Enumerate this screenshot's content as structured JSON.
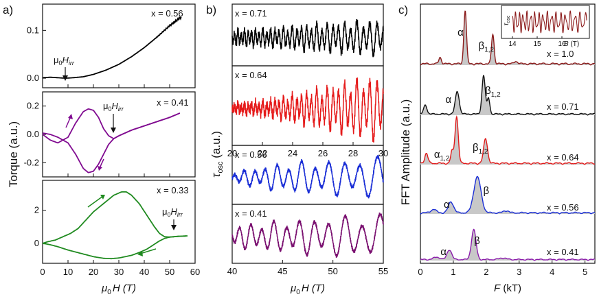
{
  "chart_data": [
    {
      "panel": "a",
      "type": "line",
      "panel_label": "a)",
      "xlabel_mu": "μ",
      "xlabel_sub": "0",
      "xlabel_rest": "H (T)",
      "ylabel": "Torque (a.u.)",
      "xlim": [
        0,
        60
      ],
      "xticks": [
        "0",
        "10",
        "20",
        "30",
        "40",
        "50",
        "60"
      ],
      "subplots": [
        {
          "composition": "x = 0.56",
          "ylim": [
            -0.02,
            0.155
          ],
          "yticks": [
            "0.0",
            "0.1"
          ],
          "ytick_values": [
            0.0,
            0.1
          ],
          "color": "#000000",
          "annotation": "μ0Hirr",
          "annotation_parts": {
            "mu": "μ",
            "sub": "0",
            "H": "H",
            "irr": "irr"
          },
          "annotation_field": 9,
          "series": [
            {
              "name": "torque",
              "x": [
                0,
                3,
                6,
                9,
                12,
                16,
                20,
                25,
                30,
                35,
                40,
                45,
                50,
                54.5
              ],
              "y": [
                0.001,
                0.002,
                0.001,
                0.0,
                0.001,
                0.003,
                0.008,
                0.017,
                0.029,
                0.045,
                0.064,
                0.086,
                0.11,
                0.128
              ]
            }
          ]
        },
        {
          "composition": "x = 0.41",
          "ylim": [
            -0.3,
            0.3
          ],
          "yticks": [
            "-0.2",
            "0.0",
            "0.2"
          ],
          "ytick_values": [
            -0.2,
            0.0,
            0.2
          ],
          "color": "#800a90",
          "annotation": "μ0Hirr",
          "annotation_parts": {
            "mu": "μ",
            "sub": "0",
            "H": "H",
            "irr": "irr"
          },
          "annotation_field": 27,
          "series": [
            {
              "name": "up sweep",
              "x": [
                0,
                3,
                6,
                10,
                13,
                16,
                18,
                20,
                22,
                24,
                26,
                28,
                30,
                35,
                40,
                45,
                50,
                54
              ],
              "y": [
                0.0,
                -0.04,
                -0.06,
                -0.02,
                0.08,
                0.16,
                0.18,
                0.17,
                0.12,
                0.04,
                -0.01,
                -0.03,
                -0.01,
                0.03,
                0.06,
                0.09,
                0.12,
                0.15
              ]
            },
            {
              "name": "down sweep",
              "x": [
                54,
                50,
                45,
                40,
                35,
                30,
                28,
                26,
                24,
                22,
                20,
                18,
                16,
                13,
                10,
                6,
                3,
                0
              ],
              "y": [
                0.15,
                0.12,
                0.09,
                0.06,
                0.03,
                -0.01,
                -0.03,
                -0.07,
                -0.14,
                -0.21,
                -0.26,
                -0.27,
                -0.24,
                -0.14,
                -0.06,
                -0.02,
                0.0,
                0.01
              ]
            }
          ]
        },
        {
          "composition": "x = 0.33",
          "ylim": [
            -1.2,
            3.8
          ],
          "yticks": [
            "0",
            "2"
          ],
          "ytick_values": [
            0,
            2
          ],
          "color": "#1f8a1f",
          "annotation": "μ0Hirr",
          "annotation_parts": {
            "mu": "μ",
            "sub": "0",
            "H": "H",
            "irr": "irr"
          },
          "annotation_field": 51,
          "series": [
            {
              "name": "up sweep",
              "x": [
                0,
                2,
                5,
                8,
                11,
                14,
                17,
                20,
                24,
                28,
                31,
                33,
                35,
                38,
                41,
                44,
                46,
                48,
                50,
                53,
                57
              ],
              "y": [
                0.0,
                0.1,
                0.2,
                0.4,
                0.6,
                0.9,
                1.4,
                1.9,
                2.4,
                2.9,
                3.1,
                3.1,
                2.9,
                2.4,
                1.7,
                1.0,
                0.6,
                0.4,
                0.38,
                0.42,
                0.45
              ]
            },
            {
              "name": "down sweep",
              "x": [
                57,
                53,
                50,
                48,
                46,
                44,
                41,
                38,
                35,
                30,
                27,
                24,
                20,
                15,
                10,
                6,
                3,
                1,
                0
              ],
              "y": [
                0.45,
                0.42,
                0.38,
                0.3,
                0.15,
                -0.05,
                -0.35,
                -0.55,
                -0.72,
                -0.88,
                -0.92,
                -0.9,
                -0.8,
                -0.6,
                -0.4,
                -0.2,
                -0.08,
                -0.02,
                0.0
              ]
            }
          ]
        }
      ]
    },
    {
      "panel": "b",
      "type": "line",
      "panel_label": "b)",
      "xlabel_mu": "μ",
      "xlabel_sub": "0",
      "xlabel_rest": "H (T)",
      "ylabel_tau": "τ",
      "ylabel_sub": "osc",
      "ylabel_rest": " (a.u.)",
      "top_group": {
        "xlim": [
          20,
          30
        ],
        "xticks": [
          "20",
          "22",
          "24",
          "26",
          "28",
          "30"
        ],
        "subplots": [
          {
            "composition": "x = 0.71",
            "color": "#000000",
            "ylim": [
              -1,
              1
            ],
            "x": [
              20,
              21,
              22,
              23,
              24,
              25,
              26,
              27,
              28,
              29,
              30
            ],
            "envelope": [
              0.28,
              0.3,
              0.32,
              0.36,
              0.42,
              0.48,
              0.52,
              0.56,
              0.6,
              0.62,
              0.66
            ],
            "frequency_kT": 1.9
          },
          {
            "composition": "x = 0.64",
            "color": "#e51a1a",
            "ylim": [
              -1,
              1
            ],
            "x": [
              20,
              21,
              22,
              23,
              24,
              25,
              26,
              27,
              28,
              29,
              30
            ],
            "envelope": [
              0.1,
              0.15,
              0.2,
              0.28,
              0.38,
              0.48,
              0.58,
              0.7,
              0.8,
              0.88,
              0.95
            ],
            "frequency_kT": 1.9
          }
        ]
      },
      "bottom_group": {
        "xlim": [
          40,
          55
        ],
        "xticks": [
          "40",
          "45",
          "50",
          "55"
        ],
        "subplots": [
          {
            "composition": "x = 0.56",
            "color": "#1a2ed6",
            "ylim": [
              -1,
              1
            ],
            "x": [
              40,
              42,
              44,
              46,
              48,
              50,
              52,
              54,
              55
            ],
            "envelope": [
              0.2,
              0.35,
              0.5,
              0.6,
              0.65,
              0.68,
              0.72,
              0.8,
              0.85
            ],
            "frequency_kT": 1.7
          },
          {
            "composition": "x = 0.41",
            "color": "#7a1070",
            "ylim": [
              -1,
              1
            ],
            "x": [
              40,
              42,
              44,
              46,
              48,
              50,
              52,
              54,
              55
            ],
            "envelope": [
              0.45,
              0.5,
              0.58,
              0.65,
              0.72,
              0.78,
              0.82,
              0.85,
              0.88
            ],
            "frequency_kT": 1.6
          }
        ]
      }
    },
    {
      "panel": "c",
      "type": "area",
      "panel_label": "c)",
      "xlabel_F": "F",
      "xlabel_rest": " (kT)",
      "ylabel": "FFT Amplitude (a.u.)",
      "xlim": [
        0,
        5.3
      ],
      "xticks": [
        "0",
        "1",
        "2",
        "3",
        "4",
        "5"
      ],
      "xtick_values": [
        0,
        1,
        2,
        3,
        4,
        5
      ],
      "spectra": [
        {
          "composition": "x = 1.0",
          "color": "#8b1a1a",
          "fill": "#c8c8c8",
          "peaks": [
            {
              "F": 0.6,
              "A": 0.12,
              "w": 0.04
            },
            {
              "F": 1.36,
              "A": 1.0,
              "w": 0.04
            },
            {
              "F": 2.2,
              "A": 0.55,
              "w": 0.04
            },
            {
              "F": 2.9,
              "A": 0.05,
              "w": 0.05
            }
          ],
          "labels": [
            {
              "text": "α",
              "F": 1.22
            },
            {
              "text": "β",
              "sub": "1,2",
              "F": 2.0
            }
          ]
        },
        {
          "composition": "x = 0.71",
          "color": "#111111",
          "fill": "#c8c8c8",
          "peaks": [
            {
              "F": 0.15,
              "A": 0.2,
              "w": 0.05
            },
            {
              "F": 1.12,
              "A": 0.5,
              "w": 0.06
            },
            {
              "F": 1.92,
              "A": 0.85,
              "w": 0.05
            },
            {
              "F": 2.07,
              "A": 0.35,
              "w": 0.04
            }
          ],
          "labels": [
            {
              "text": "α",
              "F": 0.85
            },
            {
              "text": "β",
              "sub": "1,2",
              "F": 2.2
            }
          ]
        },
        {
          "composition": "x = 0.64",
          "color": "#e01a1a",
          "fill": "#c8c8c8",
          "peaks": [
            {
              "F": 0.18,
              "A": 0.2,
              "w": 0.05
            },
            {
              "F": 0.96,
              "A": 0.25,
              "w": 0.04
            },
            {
              "F": 1.1,
              "A": 0.95,
              "w": 0.05
            },
            {
              "F": 1.98,
              "A": 0.5,
              "w": 0.06
            }
          ],
          "labels": [
            {
              "text": "α",
              "sub": "1,2",
              "F": 0.65
            },
            {
              "text": "β",
              "sub": "1,2",
              "F": 1.82
            }
          ]
        },
        {
          "composition": "x = 0.56",
          "color": "#1a2ed6",
          "fill": "#c8c8c8",
          "peaks": [
            {
              "F": 0.4,
              "A": 0.08,
              "w": 0.08
            },
            {
              "F": 0.93,
              "A": 0.25,
              "w": 0.08
            },
            {
              "F": 1.73,
              "A": 0.82,
              "w": 0.11
            },
            {
              "F": 2.6,
              "A": 0.05,
              "w": 0.08
            }
          ],
          "labels": [
            {
              "text": "α",
              "F": 0.8
            },
            {
              "text": "β",
              "F": 2.0
            }
          ]
        },
        {
          "composition": "x = 0.41",
          "color": "#8a1aaa",
          "fill": "#c8c8c8",
          "peaks": [
            {
              "F": 0.5,
              "A": 0.06,
              "w": 0.1
            },
            {
              "F": 0.88,
              "A": 0.25,
              "w": 0.07
            },
            {
              "F": 1.62,
              "A": 0.75,
              "w": 0.07
            },
            {
              "F": 2.5,
              "A": 0.04,
              "w": 0.1
            }
          ],
          "labels": [
            {
              "text": "α",
              "F": 0.7
            },
            {
              "text": "β",
              "F": 1.72
            }
          ]
        }
      ],
      "inset": {
        "ylabel_tau": "τ",
        "ylabel_sub": "osc",
        "xlabel_B": "B",
        "xlabel_rest": " (T)",
        "xlim": [
          14,
          17
        ],
        "xticks": [
          "14",
          "15",
          "16"
        ],
        "xtick_values": [
          14,
          15,
          16
        ],
        "color": "#8b1a1a",
        "frequency_kT": 1.36
      }
    }
  ]
}
